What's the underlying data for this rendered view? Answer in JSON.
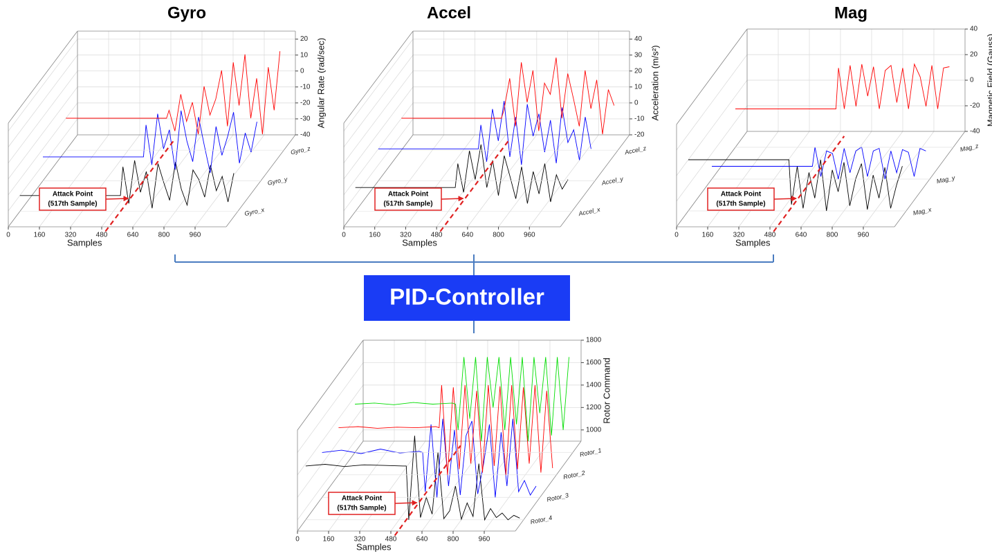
{
  "chart_data": [
    {
      "type": "waterfall",
      "title": "Gyro",
      "x_label": "Samples",
      "y_label": "Angular Rate (rad/sec)",
      "x": [
        0,
        100,
        200,
        300,
        400,
        500,
        517,
        530,
        560,
        590,
        620,
        650,
        680,
        710,
        740,
        770,
        800,
        830,
        860,
        890,
        920,
        950,
        980,
        1010,
        1040,
        1070,
        1100
      ],
      "xlim": [
        0,
        1120
      ],
      "xticks": [
        0,
        160,
        320,
        480,
        640,
        800,
        960
      ],
      "ylim": [
        -40,
        25
      ],
      "yticks": [
        -40,
        -30,
        -20,
        -10,
        0,
        10,
        20
      ],
      "grid": true,
      "series": [
        {
          "name": "Gyro_x",
          "color": "#000000",
          "values": [
            -30,
            -30,
            -30,
            -30,
            -30,
            -30,
            -30,
            -12,
            -35,
            -8,
            -28,
            -15,
            -38,
            -10,
            -22,
            -33,
            -9,
            -26,
            -36,
            -14,
            -20,
            -31,
            -11,
            -27,
            -18,
            -34,
            -16
          ]
        },
        {
          "name": "Gyro_y",
          "color": "#0000ff",
          "values": [
            -25,
            -25,
            -25,
            -25,
            -25,
            -25,
            -25,
            -5,
            -30,
            2,
            -20,
            -8,
            -33,
            4,
            -15,
            -28,
            0,
            -18,
            -35,
            -6,
            -24,
            -12,
            3,
            -29,
            -10,
            -22,
            -3
          ]
        },
        {
          "name": "Gyro_z",
          "color": "#ff0000",
          "values": [
            -20,
            -20,
            -20,
            -20,
            -20,
            -20,
            -20,
            -15,
            -28,
            -5,
            -22,
            -10,
            -30,
            0,
            -18,
            -8,
            10,
            -25,
            15,
            -12,
            20,
            -20,
            5,
            -30,
            12,
            -15,
            22
          ]
        }
      ],
      "annotation": {
        "text": [
          "Attack Point",
          "(517th Sample)"
        ],
        "x": 517
      }
    },
    {
      "type": "waterfall",
      "title": "Accel",
      "x_label": "Samples",
      "y_label": "Acceleration (m/s²)",
      "x": [
        0,
        100,
        200,
        300,
        400,
        500,
        517,
        530,
        560,
        590,
        620,
        650,
        680,
        710,
        740,
        770,
        800,
        830,
        860,
        890,
        920,
        950,
        980,
        1010,
        1040,
        1070,
        1100
      ],
      "xlim": [
        0,
        1120
      ],
      "xticks": [
        0,
        160,
        320,
        480,
        640,
        800,
        960
      ],
      "ylim": [
        -20,
        45
      ],
      "yticks": [
        -20,
        -10,
        0,
        10,
        20,
        30,
        40
      ],
      "grid": true,
      "series": [
        {
          "name": "Accel_x",
          "color": "#000000",
          "values": [
            -5,
            -5,
            -5,
            -5,
            -5,
            -5,
            -5,
            10,
            -8,
            18,
            0,
            22,
            -5,
            12,
            -10,
            15,
            2,
            -12,
            8,
            -15,
            5,
            -9,
            10,
            -14,
            3,
            -6,
            0
          ]
        },
        {
          "name": "Accel_y",
          "color": "#0000ff",
          "values": [
            0,
            0,
            0,
            0,
            0,
            0,
            0,
            15,
            -8,
            25,
            5,
            30,
            -5,
            20,
            -10,
            28,
            8,
            22,
            -2,
            18,
            -9,
            26,
            4,
            12,
            -7,
            20,
            0
          ]
        },
        {
          "name": "Accel_z",
          "color": "#ff0000",
          "values": [
            0,
            0,
            0,
            0,
            0,
            0,
            0,
            5,
            25,
            -5,
            35,
            10,
            30,
            -8,
            22,
            15,
            38,
            0,
            28,
            12,
            -5,
            30,
            6,
            24,
            -10,
            18,
            8
          ]
        }
      ],
      "annotation": {
        "text": [
          "Attack Point",
          "(517th Sample)"
        ],
        "x": 517
      }
    },
    {
      "type": "waterfall",
      "title": "Mag",
      "x_label": "Samples",
      "y_label": "Magnetic Field (Gauss)",
      "x": [
        0,
        100,
        200,
        300,
        400,
        500,
        517,
        530,
        560,
        590,
        620,
        650,
        680,
        710,
        740,
        770,
        800,
        830,
        860,
        890,
        920,
        950,
        980,
        1010,
        1040,
        1070,
        1100
      ],
      "xlim": [
        0,
        1120
      ],
      "xticks": [
        0,
        160,
        320,
        480,
        640,
        800,
        960
      ],
      "ylim": [
        -40,
        40
      ],
      "yticks": [
        -40,
        -20,
        0,
        20,
        40
      ],
      "grid": true,
      "series": [
        {
          "name": "Mag_x",
          "color": "#000000",
          "values": [
            0,
            0,
            0,
            0,
            0,
            0,
            0,
            -35,
            -5,
            -38,
            -10,
            -30,
            0,
            -40,
            -8,
            -25,
            -2,
            -36,
            -15,
            -3,
            -39,
            -12,
            -30,
            -6,
            -38,
            -20,
            -5
          ]
        },
        {
          "name": "Mag_y",
          "color": "#0000ff",
          "values": [
            -30,
            -30,
            -30,
            -30,
            -30,
            -30,
            -30,
            -15,
            -38,
            -18,
            -20,
            -40,
            -16,
            -35,
            -18,
            -15,
            -38,
            -18,
            -16,
            -40,
            -18,
            -35,
            -17,
            -19,
            -38,
            -16,
            -18
          ]
        },
        {
          "name": "Mag_z",
          "color": "#ff0000",
          "values": [
            -10,
            -10,
            -10,
            -10,
            -10,
            -10,
            -10,
            22,
            -10,
            24,
            -8,
            25,
            0,
            23,
            -10,
            20,
            24,
            -5,
            22,
            -10,
            25,
            15,
            -8,
            24,
            -10,
            22,
            23
          ]
        }
      ],
      "annotation": {
        "text": [
          "Attack Point",
          "(517th Sample)"
        ],
        "x": 517
      }
    },
    {
      "type": "waterfall",
      "x_label": "Samples",
      "y_label": "Rotor Command",
      "x": [
        0,
        100,
        200,
        300,
        400,
        500,
        517,
        530,
        560,
        590,
        620,
        650,
        680,
        710,
        740,
        770,
        800,
        830,
        860,
        890,
        920,
        950,
        980,
        1010,
        1040,
        1070,
        1100
      ],
      "xlim": [
        0,
        1120
      ],
      "xticks": [
        0,
        160,
        320,
        480,
        640,
        800,
        960
      ],
      "ylim": [
        900,
        1800
      ],
      "yticks": [
        1000,
        1200,
        1400,
        1600,
        1800
      ],
      "grid": true,
      "series": [
        {
          "name": "Rotor_4",
          "color": "#000000",
          "values": [
            1380,
            1395,
            1375,
            1390,
            1385,
            1380,
            1380,
            900,
            1650,
            920,
            1100,
            950,
            1500,
            910,
            980,
            1200,
            905,
            1050,
            930,
            1400,
            900,
            1000,
            920,
            960,
            900,
            940,
            915
          ]
        },
        {
          "name": "Rotor_3",
          "color": "#0000ff",
          "values": [
            1300,
            1320,
            1290,
            1330,
            1295,
            1310,
            1300,
            950,
            1550,
            900,
            1600,
            1000,
            1500,
            920,
            1450,
            1580,
            930,
            1200,
            1550,
            900,
            1480,
            1000,
            1600,
            950,
            1050,
            920,
            1000
          ]
        },
        {
          "name": "Rotor_2",
          "color": "#ff0000",
          "values": [
            1320,
            1330,
            1315,
            1325,
            1320,
            1330,
            1320,
            1700,
            900,
            1680,
            950,
            1700,
            1000,
            1650,
            920,
            1700,
            980,
            1690,
            900,
            1700,
            950,
            1680,
            1000,
            1700,
            920,
            1650,
            960
          ]
        },
        {
          "name": "Rotor_1",
          "color": "#00dd00",
          "values": [
            1330,
            1340,
            1325,
            1345,
            1330,
            1340,
            1330,
            1100,
            1750,
            1200,
            1750,
            1000,
            1750,
            1300,
            1750,
            1100,
            1750,
            1150,
            1750,
            1000,
            1750,
            1250,
            1750,
            1050,
            1750,
            1100,
            1750
          ]
        }
      ],
      "annotation": {
        "text": [
          "Attack Point",
          "(517th Sample)"
        ],
        "x": 517
      }
    }
  ],
  "controller": {
    "label": "PID-Controller"
  }
}
